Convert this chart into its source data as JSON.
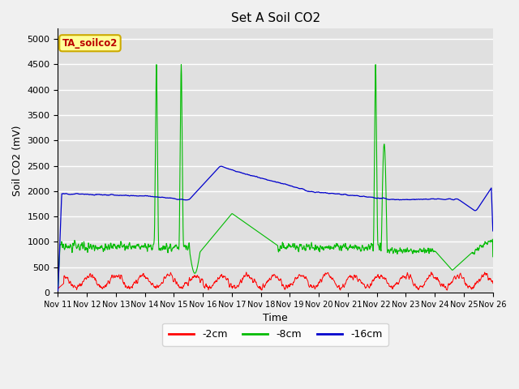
{
  "title": "Set A Soil CO2",
  "ylabel": "Soil CO2 (mV)",
  "xlabel": "Time",
  "legend_label": "TA_soilco2",
  "ylim": [
    0,
    5200
  ],
  "yticks": [
    0,
    500,
    1000,
    1500,
    2000,
    2500,
    3000,
    3500,
    4000,
    4500,
    5000
  ],
  "xtick_labels": [
    "Nov 11",
    "Nov 12",
    "Nov 13",
    "Nov 14",
    "Nov 15",
    "Nov 16",
    "Nov 17",
    "Nov 18",
    "Nov 19",
    "Nov 20",
    "Nov 21",
    "Nov 22",
    "Nov 23",
    "Nov 24",
    "Nov 25",
    "Nov 26"
  ],
  "series_colors": {
    "2cm": "#ff0000",
    "8cm": "#00bb00",
    "16cm": "#0000cc"
  },
  "background_color": "#e0e0e0",
  "fig_bg_color": "#f0f0f0",
  "legend_box_facecolor": "#ffff99",
  "legend_box_edgecolor": "#ccaa00",
  "legend_text_color": "#bb0000",
  "title_fontsize": 11,
  "axis_fontsize": 9,
  "tick_fontsize": 8
}
